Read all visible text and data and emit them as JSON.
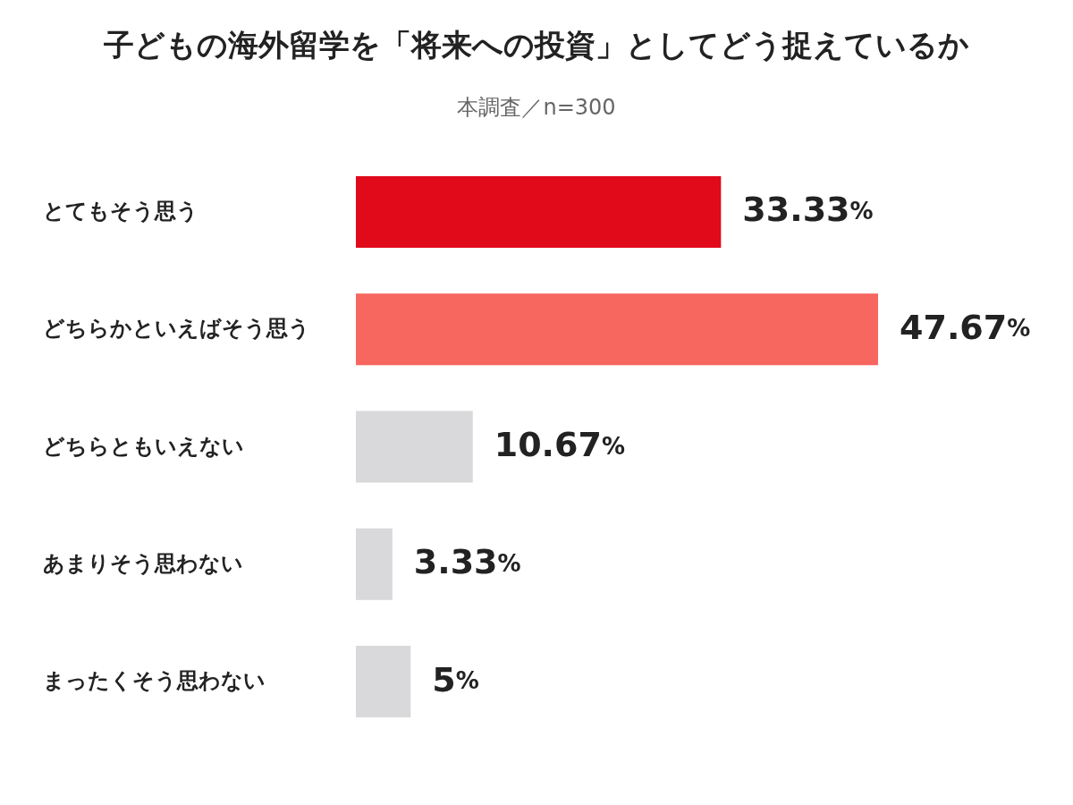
{
  "chart_data": {
    "type": "bar",
    "orientation": "horizontal",
    "title": "子どもの海外留学を「将来への投資」としてどう捉えているか",
    "subtitle": "本調査／n=300",
    "categories": [
      "とてもそう思う",
      "どちらかといえばそう思う",
      "どちらともいえない",
      "あまりそう思わない",
      "まったくそう思わない"
    ],
    "values": [
      33.33,
      47.67,
      10.67,
      3.33,
      5
    ],
    "colors": [
      "#e00a1a",
      "#f7675f",
      "#d9d8da",
      "#d9d8da",
      "#d9d8da"
    ],
    "value_labels": [
      "33.33%",
      "47.67%",
      "10.67%",
      "3.33%",
      "5%"
    ]
  }
}
